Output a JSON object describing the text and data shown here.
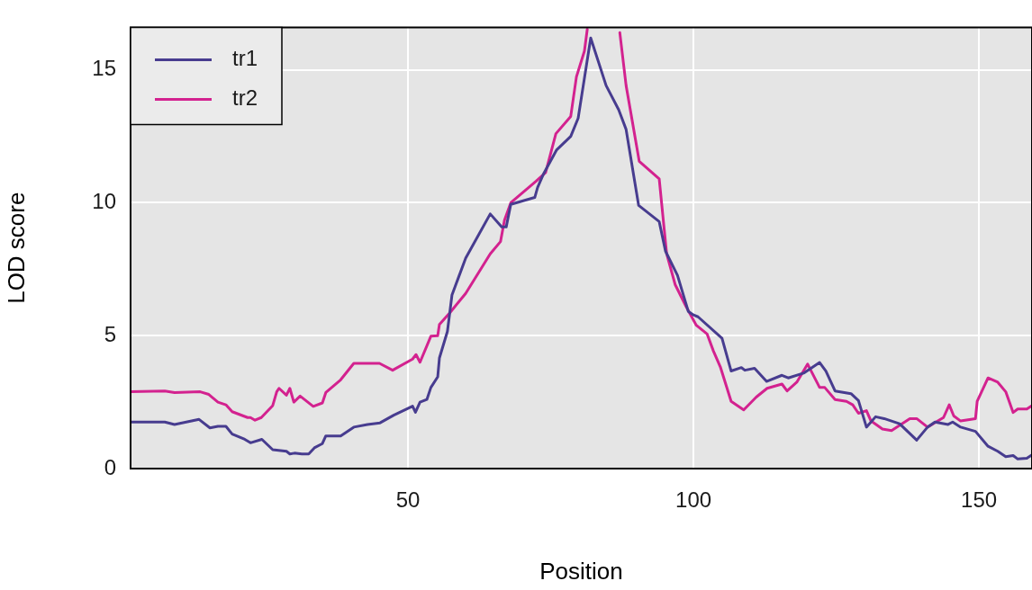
{
  "chart_data": {
    "type": "line",
    "xlabel": "Position",
    "ylabel": "LOD score",
    "xlim": [
      1.4,
      159.3
    ],
    "ylim": [
      0,
      16.6
    ],
    "xticks": [
      50,
      100,
      150
    ],
    "yticks": [
      0,
      5,
      10,
      15
    ],
    "grid": true,
    "legend": "top left",
    "line_style": "solid",
    "marker": "none",
    "series": [
      {
        "name": "tr1",
        "color": "#473c8f",
        "x": [
          1.4,
          7.4,
          9.1,
          13.4,
          15.3,
          16.7,
          18.1,
          19.2,
          21.4,
          22.4,
          24.4,
          26.3,
          28.7,
          29.3,
          30.1,
          31.4,
          32.6,
          33.6,
          35.0,
          35.6,
          38.2,
          40.5,
          42.9,
          45.1,
          47.5,
          50.8,
          51.3,
          52.1,
          53.3,
          54.0,
          55.2,
          55.5,
          56.9,
          57.7,
          60.1,
          64.4,
          66.4,
          67.2,
          68.0,
          72.2,
          72.7,
          73.7,
          76.0,
          78.5,
          79.8,
          82.0,
          84.7,
          86.9,
          88.2,
          90.4,
          94.0,
          95.1,
          97.2,
          99.1,
          100.0,
          100.8,
          105.0,
          106.6,
          108.4,
          109.0,
          110.7,
          112.8,
          115.5,
          116.6,
          119.4,
          122.1,
          123.2,
          124.8,
          127.6,
          128.9,
          130.3,
          131.9,
          133.4,
          136.1,
          139.1,
          141.0,
          142.3,
          144.6,
          145.4,
          146.8,
          149.4,
          151.6,
          153.3,
          154.7,
          156.0,
          156.8,
          158.4,
          159.3
        ],
        "values": [
          1.75,
          1.75,
          1.66,
          1.85,
          1.53,
          1.59,
          1.59,
          1.3,
          1.1,
          0.97,
          1.1,
          0.71,
          0.65,
          0.55,
          0.58,
          0.55,
          0.55,
          0.78,
          0.94,
          1.23,
          1.23,
          1.56,
          1.66,
          1.72,
          2.01,
          2.35,
          2.12,
          2.5,
          2.6,
          3.05,
          3.45,
          4.16,
          5.16,
          6.53,
          7.92,
          9.58,
          9.09,
          9.09,
          9.94,
          10.2,
          10.58,
          11.07,
          11.98,
          12.5,
          13.18,
          16.2,
          14.41,
          13.5,
          12.76,
          9.9,
          9.29,
          8.18,
          7.27,
          5.91,
          5.78,
          5.71,
          4.9,
          3.67,
          3.8,
          3.7,
          3.77,
          3.28,
          3.51,
          3.41,
          3.6,
          3.99,
          3.67,
          2.92,
          2.82,
          2.56,
          1.56,
          1.95,
          1.88,
          1.69,
          1.07,
          1.56,
          1.75,
          1.66,
          1.75,
          1.56,
          1.4,
          0.84,
          0.65,
          0.45,
          0.49,
          0.36,
          0.39,
          0.52
        ]
      },
      {
        "name": "tr2",
        "color": "#d3228f",
        "x": [
          1.4,
          7.4,
          9.1,
          13.6,
          15.1,
          16.7,
          18.1,
          19.2,
          21.9,
          22.4,
          23.2,
          24.3,
          26.3,
          27.0,
          27.4,
          28.7,
          29.3,
          30.0,
          31.1,
          33.4,
          35.0,
          35.6,
          38.2,
          40.5,
          45.0,
          47.3,
          50.8,
          51.4,
          52.1,
          54.0,
          55.2,
          55.5,
          57.4,
          60.1,
          64.4,
          66.2,
          66.9,
          68.0,
          72.4,
          74.1,
          75.9,
          78.5,
          79.5,
          80.9,
          81.4,
          84.5,
          87.1,
          88.2,
          90.5,
          94.0,
          95.3,
          96.8,
          98.7,
          100.5,
          102.4,
          103.5,
          104.7,
          106.6,
          108.8,
          111.0,
          112.9,
          115.5,
          116.4,
          118.1,
          120.0,
          122.1,
          123.0,
          124.8,
          126.8,
          127.9,
          128.9,
          130.3,
          131.1,
          133.1,
          134.7,
          137.9,
          139.1,
          141.0,
          143.8,
          144.8,
          145.6,
          146.8,
          149.4,
          149.7,
          151.6,
          153.3,
          154.7,
          156.0,
          156.8,
          158.4,
          159.3
        ],
        "values": [
          2.89,
          2.92,
          2.86,
          2.89,
          2.79,
          2.5,
          2.4,
          2.14,
          1.92,
          1.92,
          1.82,
          1.92,
          2.37,
          2.89,
          3.02,
          2.76,
          3.02,
          2.5,
          2.73,
          2.34,
          2.47,
          2.86,
          3.34,
          3.96,
          3.96,
          3.7,
          4.12,
          4.29,
          4.0,
          4.98,
          5.0,
          5.42,
          5.88,
          6.59,
          8.08,
          8.54,
          9.35,
          10.0,
          10.81,
          11.14,
          12.6,
          13.25,
          14.74,
          15.71,
          16.53,
          null,
          16.4,
          14.41,
          11.56,
          10.9,
          8.08,
          6.92,
          6.1,
          5.39,
          5.06,
          4.42,
          3.83,
          2.53,
          2.21,
          2.69,
          3.02,
          3.18,
          2.92,
          3.25,
          3.93,
          3.05,
          3.05,
          2.6,
          2.53,
          2.4,
          2.08,
          2.18,
          1.79,
          1.49,
          1.43,
          1.88,
          1.88,
          1.56,
          1.92,
          2.4,
          1.98,
          1.79,
          1.88,
          2.53,
          3.41,
          3.25,
          2.89,
          2.11,
          2.24,
          2.24,
          2.37
        ]
      }
    ]
  }
}
